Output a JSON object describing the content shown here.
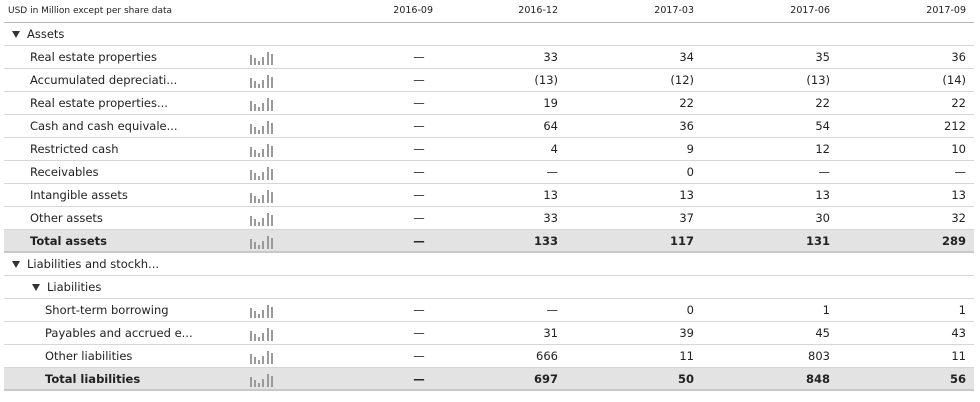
{
  "header": {
    "unit_label": "USD in Million except per share data",
    "periods": [
      "2016-09",
      "2016-12",
      "2017-03",
      "2017-06",
      "2017-09"
    ]
  },
  "sections": {
    "assets": "Assets",
    "liab_equity": "Liabilities and stockh...",
    "liabilities": "Liabilities"
  },
  "empty_marker": "—",
  "rows": [
    {
      "label": "Real estate properties",
      "values": [
        "—",
        "33",
        "34",
        "35",
        "36"
      ]
    },
    {
      "label": "Accumulated depreciati...",
      "values": [
        "—",
        "(13)",
        "(12)",
        "(13)",
        "(14)"
      ]
    },
    {
      "label": "Real estate properties...",
      "values": [
        "—",
        "19",
        "22",
        "22",
        "22"
      ]
    },
    {
      "label": "Cash and cash equivale...",
      "values": [
        "—",
        "64",
        "36",
        "54",
        "212"
      ]
    },
    {
      "label": "Restricted cash",
      "values": [
        "—",
        "4",
        "9",
        "12",
        "10"
      ]
    },
    {
      "label": "Receivables",
      "values": [
        "—",
        "—",
        "0",
        "—",
        "—"
      ]
    },
    {
      "label": "Intangible assets",
      "values": [
        "—",
        "13",
        "13",
        "13",
        "13"
      ]
    },
    {
      "label": "Other assets",
      "values": [
        "—",
        "33",
        "37",
        "30",
        "32"
      ]
    },
    {
      "label": "Total assets",
      "values": [
        "—",
        "133",
        "117",
        "131",
        "289"
      ]
    },
    {
      "label": "Short-term borrowing",
      "values": [
        "—",
        "—",
        "0",
        "1",
        "1"
      ]
    },
    {
      "label": "Payables and accrued e...",
      "values": [
        "—",
        "31",
        "39",
        "45",
        "43"
      ]
    },
    {
      "label": "Other liabilities",
      "values": [
        "—",
        "666",
        "11",
        "803",
        "11"
      ]
    },
    {
      "label": "Total liabilities",
      "values": [
        "—",
        "697",
        "50",
        "848",
        "56"
      ]
    }
  ],
  "icons": {
    "expand": "triangle-down-icon",
    "chart": "bar-chart-icon"
  }
}
